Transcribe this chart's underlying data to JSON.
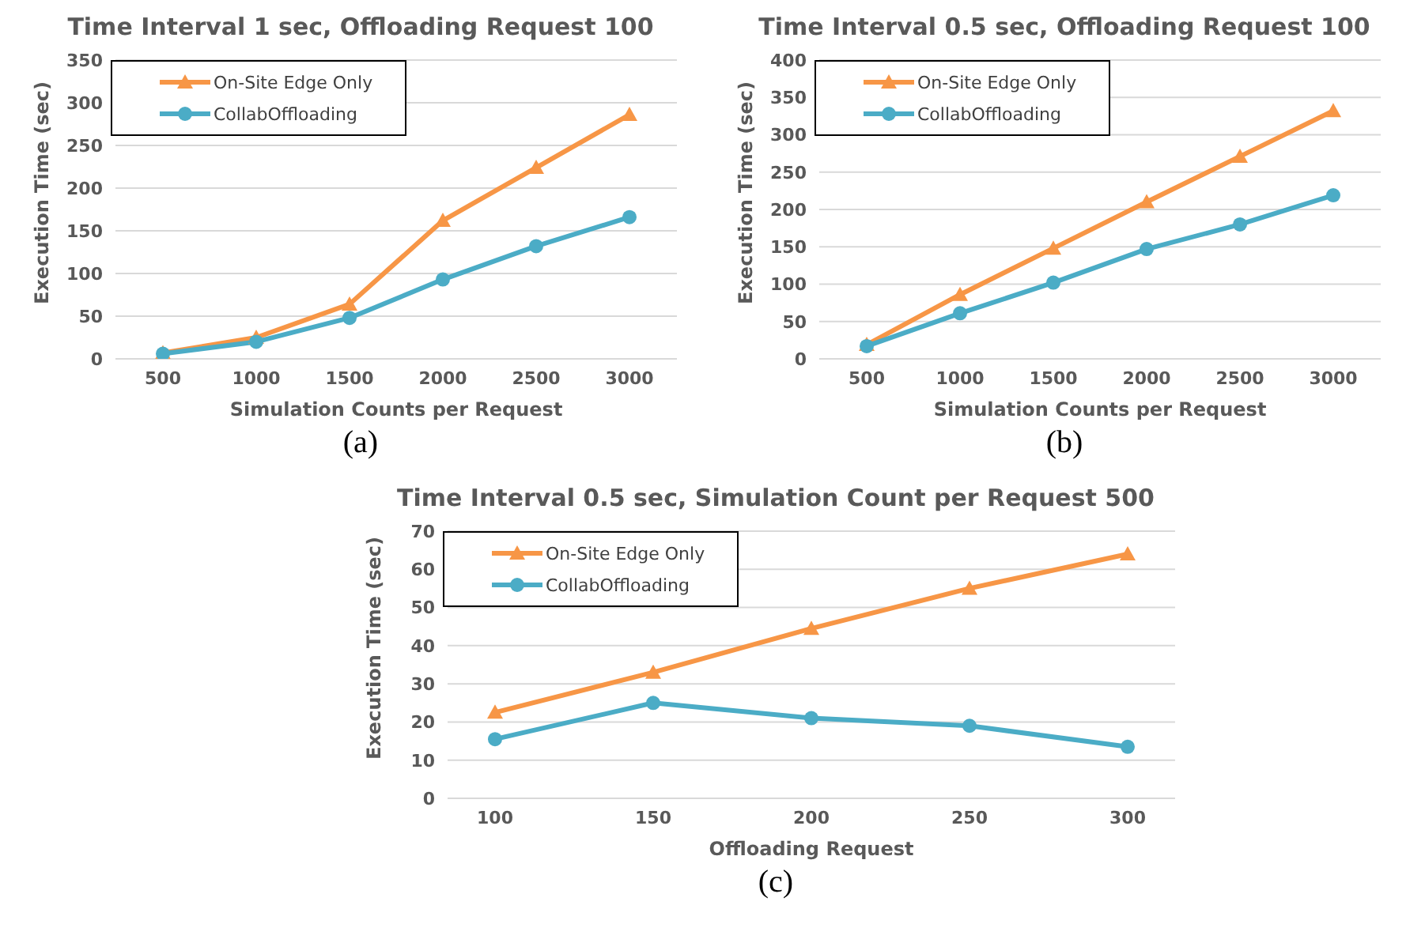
{
  "chart_data": [
    {
      "type": "line",
      "title": "Time Interval 1 sec, Offloading Request 100",
      "xlabel": "Simulation Counts per Request",
      "ylabel": "Execution Time (sec)",
      "annotations": [
        "(a)"
      ],
      "categories": [
        "500",
        "1000",
        "1500",
        "2000",
        "2500",
        "3000"
      ],
      "series": [
        {
          "name": "On-Site Edge Only",
          "color": "#f79646",
          "marker": "triangle",
          "values": [
            7,
            25,
            64,
            162,
            224,
            286
          ]
        },
        {
          "name": "CollabOffloading",
          "color": "#4bacc6",
          "marker": "circle",
          "values": [
            6,
            20,
            48,
            93,
            132,
            166
          ]
        }
      ],
      "ylim": [
        0,
        350
      ],
      "yticks": [
        0,
        50,
        100,
        150,
        200,
        250,
        300,
        350
      ],
      "grid": "y",
      "legend": "top left",
      "line_style": "solid"
    },
    {
      "type": "line",
      "title": "Time Interval 0.5 sec, Offloading Request 100",
      "xlabel": "Simulation Counts per Request",
      "ylabel": "Execution Time (sec)",
      "annotations": [
        "(b)"
      ],
      "categories": [
        "500",
        "1000",
        "1500",
        "2000",
        "2500",
        "3000"
      ],
      "series": [
        {
          "name": "On-Site Edge Only",
          "color": "#f79646",
          "marker": "triangle",
          "values": [
            19,
            86,
            148,
            210,
            271,
            332
          ]
        },
        {
          "name": "CollabOffloading",
          "color": "#4bacc6",
          "marker": "circle",
          "values": [
            17,
            61,
            102,
            147,
            180,
            219
          ]
        }
      ],
      "ylim": [
        0,
        400
      ],
      "yticks": [
        0,
        50,
        100,
        150,
        200,
        250,
        300,
        350,
        400
      ],
      "grid": "y",
      "legend": "top left",
      "line_style": "solid"
    },
    {
      "type": "line",
      "title": "Time Interval 0.5 sec, Simulation Count per Request 500",
      "xlabel": "Offloading Request",
      "ylabel": "Execution Time (sec)",
      "annotations": [
        "(c)"
      ],
      "categories": [
        "100",
        "150",
        "200",
        "250",
        "300"
      ],
      "series": [
        {
          "name": "On-Site Edge Only",
          "color": "#f79646",
          "marker": "triangle",
          "values": [
            22.5,
            33,
            44.5,
            55,
            64
          ]
        },
        {
          "name": "CollabOffloading",
          "color": "#4bacc6",
          "marker": "circle",
          "values": [
            15.5,
            25,
            21,
            19,
            13.5
          ]
        }
      ],
      "ylim": [
        0,
        70
      ],
      "yticks": [
        0,
        10,
        20,
        30,
        40,
        50,
        60,
        70
      ],
      "grid": "y",
      "legend": "top left",
      "line_style": "solid"
    }
  ]
}
